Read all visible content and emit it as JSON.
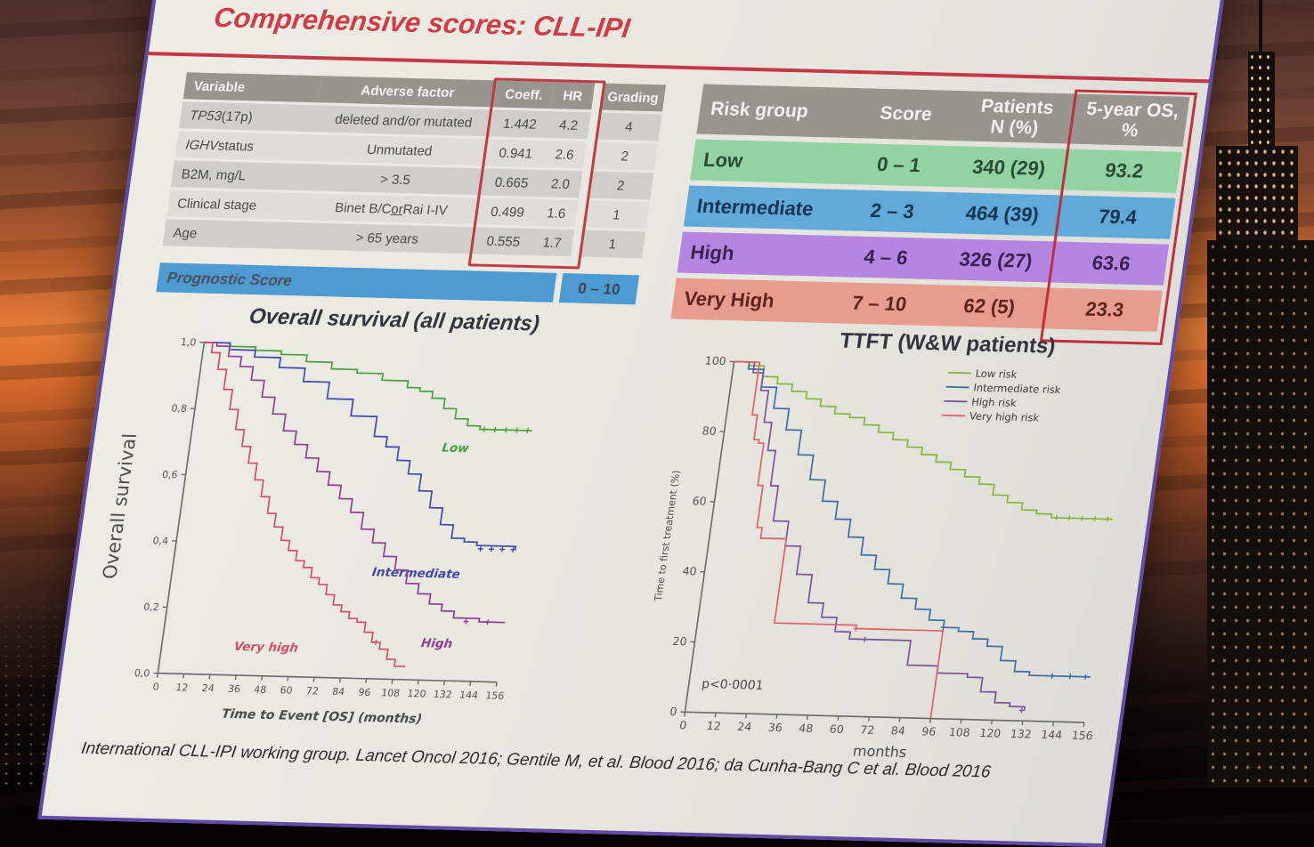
{
  "slide": {
    "title": "Comprehensive scores: CLL-IPI",
    "citation": "International CLL-IPI working group. Lancet Oncol 2016; Gentile M, et al. Blood 2016; da Cunha-Bang C et al. Blood 2016"
  },
  "factors_table": {
    "headers": [
      "Variable",
      "Adverse factor",
      "Coeff.",
      "HR",
      "Grading"
    ],
    "rows": [
      {
        "var_em": "TP53",
        "var_rest": " (17p)",
        "adv_pre": "deleted and/or mutated",
        "adv_u": "",
        "adv_post": "",
        "coeff": "1.442",
        "hr": "4.2",
        "grading": "4"
      },
      {
        "var_em": "IGHV",
        "var_rest": " status",
        "adv_pre": "Unmutated",
        "adv_u": "",
        "adv_post": "",
        "coeff": "0.941",
        "hr": "2.6",
        "grading": "2"
      },
      {
        "var_em": "",
        "var_rest": "B2M, mg/L",
        "adv_pre": "> 3.5",
        "adv_u": "",
        "adv_post": "",
        "coeff": "0.665",
        "hr": "2.0",
        "grading": "2"
      },
      {
        "var_em": "",
        "var_rest": "Clinical stage",
        "adv_pre": "Binet B/C ",
        "adv_u": "or",
        "adv_post": " Rai I-IV",
        "coeff": "0.499",
        "hr": "1.6",
        "grading": "1"
      },
      {
        "var_em": "",
        "var_rest": "Age",
        "adv_pre": "> 65 years",
        "adv_u": "",
        "adv_post": "",
        "coeff": "0.555",
        "hr": "1.7",
        "grading": "1"
      }
    ],
    "footer": {
      "label": "Prognostic Score",
      "range": "0 – 10"
    }
  },
  "risk_table": {
    "headers": {
      "col1": "Risk group",
      "col2": "Score",
      "col3_line1": "Patients",
      "col3_line2": "N (%)",
      "col4_line1": "5-year OS,",
      "col4_line2": "%"
    },
    "rows": [
      {
        "risk_group": "Low",
        "score": "0 – 1",
        "patients": "340 (29)",
        "os": "93.2",
        "color": "#92d3a2",
        "text_color": "#2c4a34"
      },
      {
        "risk_group": "Intermediate",
        "score": "2 – 3",
        "patients": "464 (39)",
        "os": "79.4",
        "color": "#60a9d9",
        "text_color": "#173450"
      },
      {
        "risk_group": "High",
        "score": "4 – 6",
        "patients": "326 (27)",
        "os": "63.6",
        "color": "#b585e2",
        "text_color": "#3a2152"
      },
      {
        "risk_group": "Very High",
        "score": "7 – 10",
        "patients": "62 (5)",
        "os": "23.3",
        "color": "#e89c8e",
        "text_color": "#5c241c"
      }
    ]
  },
  "colors": {
    "title_red": "#cf3b47",
    "highlight_box_red": "#bf3a44",
    "prognostic_bar_blue": "#4e9ad2",
    "table_header_gray": "#98948e"
  },
  "chart_data": [
    {
      "id": "os",
      "type": "line",
      "subtype": "kaplan-meier-step",
      "title": "Overall survival (all patients)",
      "xlabel": "Time to Event [OS] (months)",
      "ylabel": "Overall survival",
      "xlim": [
        0,
        156
      ],
      "ylim": [
        0,
        1
      ],
      "grid": false,
      "legend": false,
      "xticks": [
        0,
        12,
        24,
        36,
        48,
        60,
        72,
        84,
        96,
        108,
        120,
        132,
        144,
        156
      ],
      "yticks": [
        0,
        0.2,
        0.4,
        0.6,
        0.8,
        1.0
      ],
      "ytick_labels": [
        "0,0",
        "0,2",
        "0,4",
        "0,6",
        "0,8",
        "1,0"
      ],
      "series": [
        {
          "name": "Low",
          "color": "#4ba03e",
          "label_pos": [
            122,
            0.69
          ],
          "points": [
            [
              0,
              1.0
            ],
            [
              6,
              1.0
            ],
            [
              12,
              0.99
            ],
            [
              24,
              0.98
            ],
            [
              36,
              0.97
            ],
            [
              48,
              0.95
            ],
            [
              60,
              0.93
            ],
            [
              72,
              0.92
            ],
            [
              84,
              0.9
            ],
            [
              96,
              0.88
            ],
            [
              102,
              0.87
            ],
            [
              108,
              0.85
            ],
            [
              114,
              0.82
            ],
            [
              120,
              0.79
            ],
            [
              126,
              0.77
            ],
            [
              132,
              0.76
            ],
            [
              156,
              0.76
            ]
          ],
          "censors": [
            [
              134,
              0.76
            ],
            [
              139,
              0.76
            ],
            [
              144,
              0.76
            ],
            [
              149,
              0.76
            ],
            [
              154,
              0.76
            ]
          ]
        },
        {
          "name": "Intermediate",
          "color": "#4147ad",
          "label_pos": [
            112,
            0.31
          ],
          "points": [
            [
              0,
              1.0
            ],
            [
              12,
              0.98
            ],
            [
              24,
              0.96
            ],
            [
              36,
              0.93
            ],
            [
              48,
              0.89
            ],
            [
              60,
              0.84
            ],
            [
              72,
              0.79
            ],
            [
              84,
              0.73
            ],
            [
              90,
              0.7
            ],
            [
              96,
              0.66
            ],
            [
              102,
              0.62
            ],
            [
              108,
              0.57
            ],
            [
              114,
              0.52
            ],
            [
              120,
              0.47
            ],
            [
              126,
              0.43
            ],
            [
              132,
              0.42
            ],
            [
              138,
              0.41
            ],
            [
              156,
              0.4
            ]
          ],
          "censors": [
            [
              140,
              0.4
            ],
            [
              145,
              0.4
            ],
            [
              150,
              0.4
            ],
            [
              155,
              0.4
            ]
          ]
        },
        {
          "name": "High",
          "color": "#8c3f92",
          "label_pos": [
            126,
            0.1
          ],
          "points": [
            [
              0,
              1.0
            ],
            [
              6,
              0.99
            ],
            [
              12,
              0.96
            ],
            [
              18,
              0.93
            ],
            [
              24,
              0.89
            ],
            [
              30,
              0.84
            ],
            [
              36,
              0.79
            ],
            [
              42,
              0.74
            ],
            [
              48,
              0.7
            ],
            [
              54,
              0.66
            ],
            [
              60,
              0.62
            ],
            [
              66,
              0.58
            ],
            [
              72,
              0.54
            ],
            [
              78,
              0.5
            ],
            [
              84,
              0.45
            ],
            [
              90,
              0.41
            ],
            [
              96,
              0.37
            ],
            [
              102,
              0.33
            ],
            [
              108,
              0.29
            ],
            [
              114,
              0.26
            ],
            [
              120,
              0.23
            ],
            [
              126,
              0.21
            ],
            [
              132,
              0.19
            ],
            [
              144,
              0.18
            ],
            [
              156,
              0.18
            ]
          ],
          "censors": [
            [
              138,
              0.18
            ],
            [
              148,
              0.18
            ]
          ]
        },
        {
          "name": "Very high",
          "color": "#d44f68",
          "label_pos": [
            48,
            0.075
          ],
          "points": [
            [
              0,
              1.0
            ],
            [
              4,
              0.97
            ],
            [
              8,
              0.92
            ],
            [
              12,
              0.86
            ],
            [
              16,
              0.8
            ],
            [
              20,
              0.74
            ],
            [
              24,
              0.69
            ],
            [
              28,
              0.64
            ],
            [
              32,
              0.59
            ],
            [
              36,
              0.54
            ],
            [
              40,
              0.49
            ],
            [
              44,
              0.45
            ],
            [
              48,
              0.41
            ],
            [
              52,
              0.38
            ],
            [
              56,
              0.35
            ],
            [
              60,
              0.33
            ],
            [
              64,
              0.3
            ],
            [
              68,
              0.28
            ],
            [
              72,
              0.25
            ],
            [
              76,
              0.22
            ],
            [
              80,
              0.2
            ],
            [
              84,
              0.18
            ],
            [
              88,
              0.17
            ],
            [
              92,
              0.14
            ],
            [
              96,
              0.11
            ],
            [
              100,
              0.09
            ],
            [
              104,
              0.06
            ],
            [
              108,
              0.04
            ],
            [
              113,
              0.04
            ]
          ],
          "censors": [
            [
              98,
              0.11
            ]
          ]
        }
      ]
    },
    {
      "id": "ttft",
      "type": "line",
      "subtype": "kaplan-meier-step",
      "title": "TTFT (W&W patients)",
      "xlabel": "months",
      "ylabel": "Time to first treatment (%)",
      "xlim": [
        0,
        156
      ],
      "ylim": [
        0,
        100
      ],
      "grid": false,
      "legend": true,
      "legend_position": "top-right",
      "annotation": {
        "text": "p<0·0001",
        "x": 5,
        "y": 7
      },
      "xticks": [
        0,
        12,
        24,
        36,
        48,
        60,
        72,
        84,
        96,
        108,
        120,
        132,
        144,
        156
      ],
      "yticks": [
        0,
        20,
        40,
        60,
        80,
        100
      ],
      "ytick_labels": [
        "0",
        "20",
        "40",
        "60",
        "80",
        "100"
      ],
      "series": [
        {
          "name": "Low risk",
          "color": "#8ab43e",
          "points": [
            [
              0,
              100
            ],
            [
              6,
              99
            ],
            [
              12,
              96
            ],
            [
              18,
              94
            ],
            [
              24,
              92
            ],
            [
              30,
              90
            ],
            [
              36,
              88
            ],
            [
              42,
              86
            ],
            [
              48,
              85
            ],
            [
              54,
              83
            ],
            [
              60,
              81
            ],
            [
              66,
              79
            ],
            [
              72,
              77
            ],
            [
              78,
              75
            ],
            [
              84,
              73
            ],
            [
              90,
              71
            ],
            [
              96,
              69
            ],
            [
              102,
              67
            ],
            [
              108,
              64
            ],
            [
              114,
              62
            ],
            [
              120,
              60
            ],
            [
              126,
              59
            ],
            [
              132,
              58
            ],
            [
              156,
              58
            ]
          ],
          "censors": [
            [
              134,
              58
            ],
            [
              139,
              58
            ],
            [
              144,
              58
            ],
            [
              149,
              58
            ],
            [
              154,
              58
            ]
          ]
        },
        {
          "name": "Intermediate risk",
          "color": "#3d6ca4",
          "points": [
            [
              0,
              100
            ],
            [
              6,
              98
            ],
            [
              12,
              93
            ],
            [
              18,
              87
            ],
            [
              24,
              81
            ],
            [
              30,
              74
            ],
            [
              36,
              67
            ],
            [
              42,
              61
            ],
            [
              48,
              56
            ],
            [
              54,
              51
            ],
            [
              60,
              46
            ],
            [
              66,
              42
            ],
            [
              72,
              38
            ],
            [
              78,
              34
            ],
            [
              84,
              31
            ],
            [
              90,
              28
            ],
            [
              96,
              26
            ],
            [
              102,
              25
            ],
            [
              108,
              23
            ],
            [
              114,
              21
            ],
            [
              120,
              17
            ],
            [
              126,
              14
            ],
            [
              132,
              13
            ],
            [
              156,
              13
            ]
          ],
          "censors": [
            [
              96,
              26
            ],
            [
              141,
              13
            ],
            [
              148,
              13
            ],
            [
              154,
              13
            ]
          ]
        },
        {
          "name": "High risk",
          "color": "#7b539a",
          "points": [
            [
              0,
              100
            ],
            [
              8,
              97
            ],
            [
              12,
              92
            ],
            [
              15,
              83
            ],
            [
              18,
              75
            ],
            [
              21,
              65
            ],
            [
              24,
              55
            ],
            [
              30,
              48
            ],
            [
              36,
              40
            ],
            [
              42,
              32
            ],
            [
              48,
              28
            ],
            [
              54,
              24
            ],
            [
              60,
              22
            ],
            [
              78,
              22
            ],
            [
              84,
              15
            ],
            [
              96,
              13
            ],
            [
              108,
              12
            ],
            [
              114,
              8
            ],
            [
              120,
              5
            ],
            [
              126,
              4
            ],
            [
              132,
              3
            ]
          ],
          "censors": [
            [
              66,
              22
            ],
            [
              131,
              3
            ]
          ]
        },
        {
          "name": "Very high risk",
          "color": "#e0606c",
          "points": [
            [
              0,
              100
            ],
            [
              8,
              100
            ],
            [
              10,
              85
            ],
            [
              12,
              78
            ],
            [
              14,
              77
            ],
            [
              16,
              65
            ],
            [
              18,
              53
            ],
            [
              20,
              50
            ],
            [
              28,
              50
            ],
            [
              30,
              26
            ],
            [
              60,
              26
            ],
            [
              62,
              25
            ],
            [
              94,
              25
            ],
            [
              96,
              0
            ]
          ],
          "censors": [
            [
              62,
              25
            ]
          ]
        }
      ]
    }
  ]
}
